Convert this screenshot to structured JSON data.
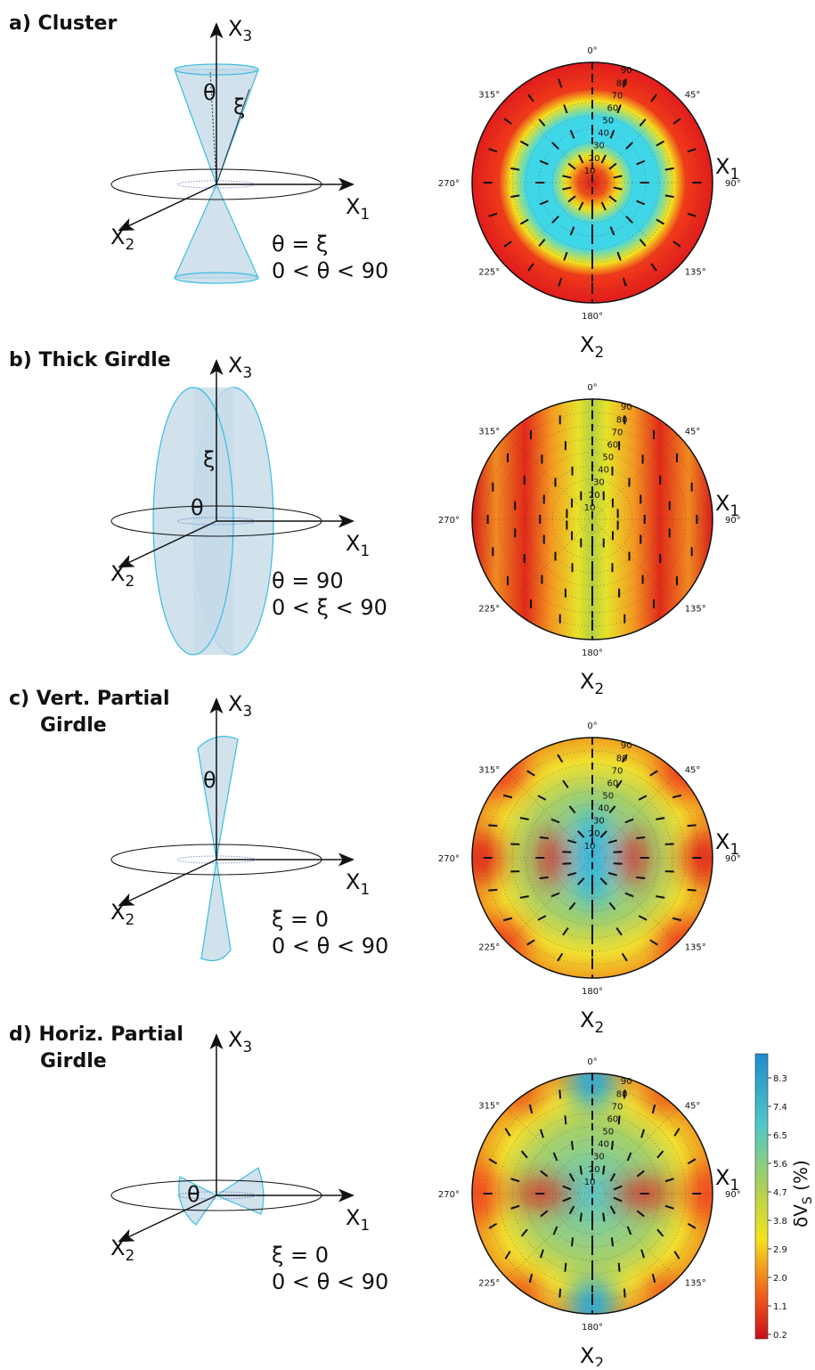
{
  "panels": [
    {
      "label": [
        "a) Cluster"
      ],
      "angles": [
        "θ",
        "ξ"
      ],
      "equations": [
        "θ = ξ",
        "0 < θ < 90"
      ]
    },
    {
      "label": [
        "b) Thick Girdle"
      ],
      "angles": [
        "ξ",
        "θ"
      ],
      "equations": [
        "θ = 90",
        "0 < ξ < 90"
      ]
    },
    {
      "label": [
        "c) Vert. Partial",
        "Girdle"
      ],
      "angles": [
        "θ"
      ],
      "equations": [
        "ξ = 0",
        "0 < θ < 90"
      ]
    },
    {
      "label": [
        "d) Horiz. Partial",
        "Girdle"
      ],
      "angles": [
        "θ"
      ],
      "equations": [
        "ξ = 0",
        "0 < θ < 90"
      ]
    }
  ],
  "axis_labels": {
    "base": "X",
    "x1": "1",
    "x2": "2",
    "x3": "3"
  },
  "azimuth_labels": [
    "0°",
    "45°",
    "90°",
    "135°",
    "180°",
    "225°",
    "270°",
    "315°"
  ],
  "radial_labels": [
    "10",
    "20",
    "30",
    "40",
    "50",
    "60",
    "70",
    "80",
    "90"
  ],
  "colorbar": {
    "label": "δV",
    "label_sub": "S",
    "label_suffix": " (%)",
    "ticks": [
      "8.3",
      "7.4",
      "6.5",
      "5.6",
      "4.7",
      "3.8",
      "2.9",
      "2.0",
      "1.1",
      "0.2"
    ]
  }
}
